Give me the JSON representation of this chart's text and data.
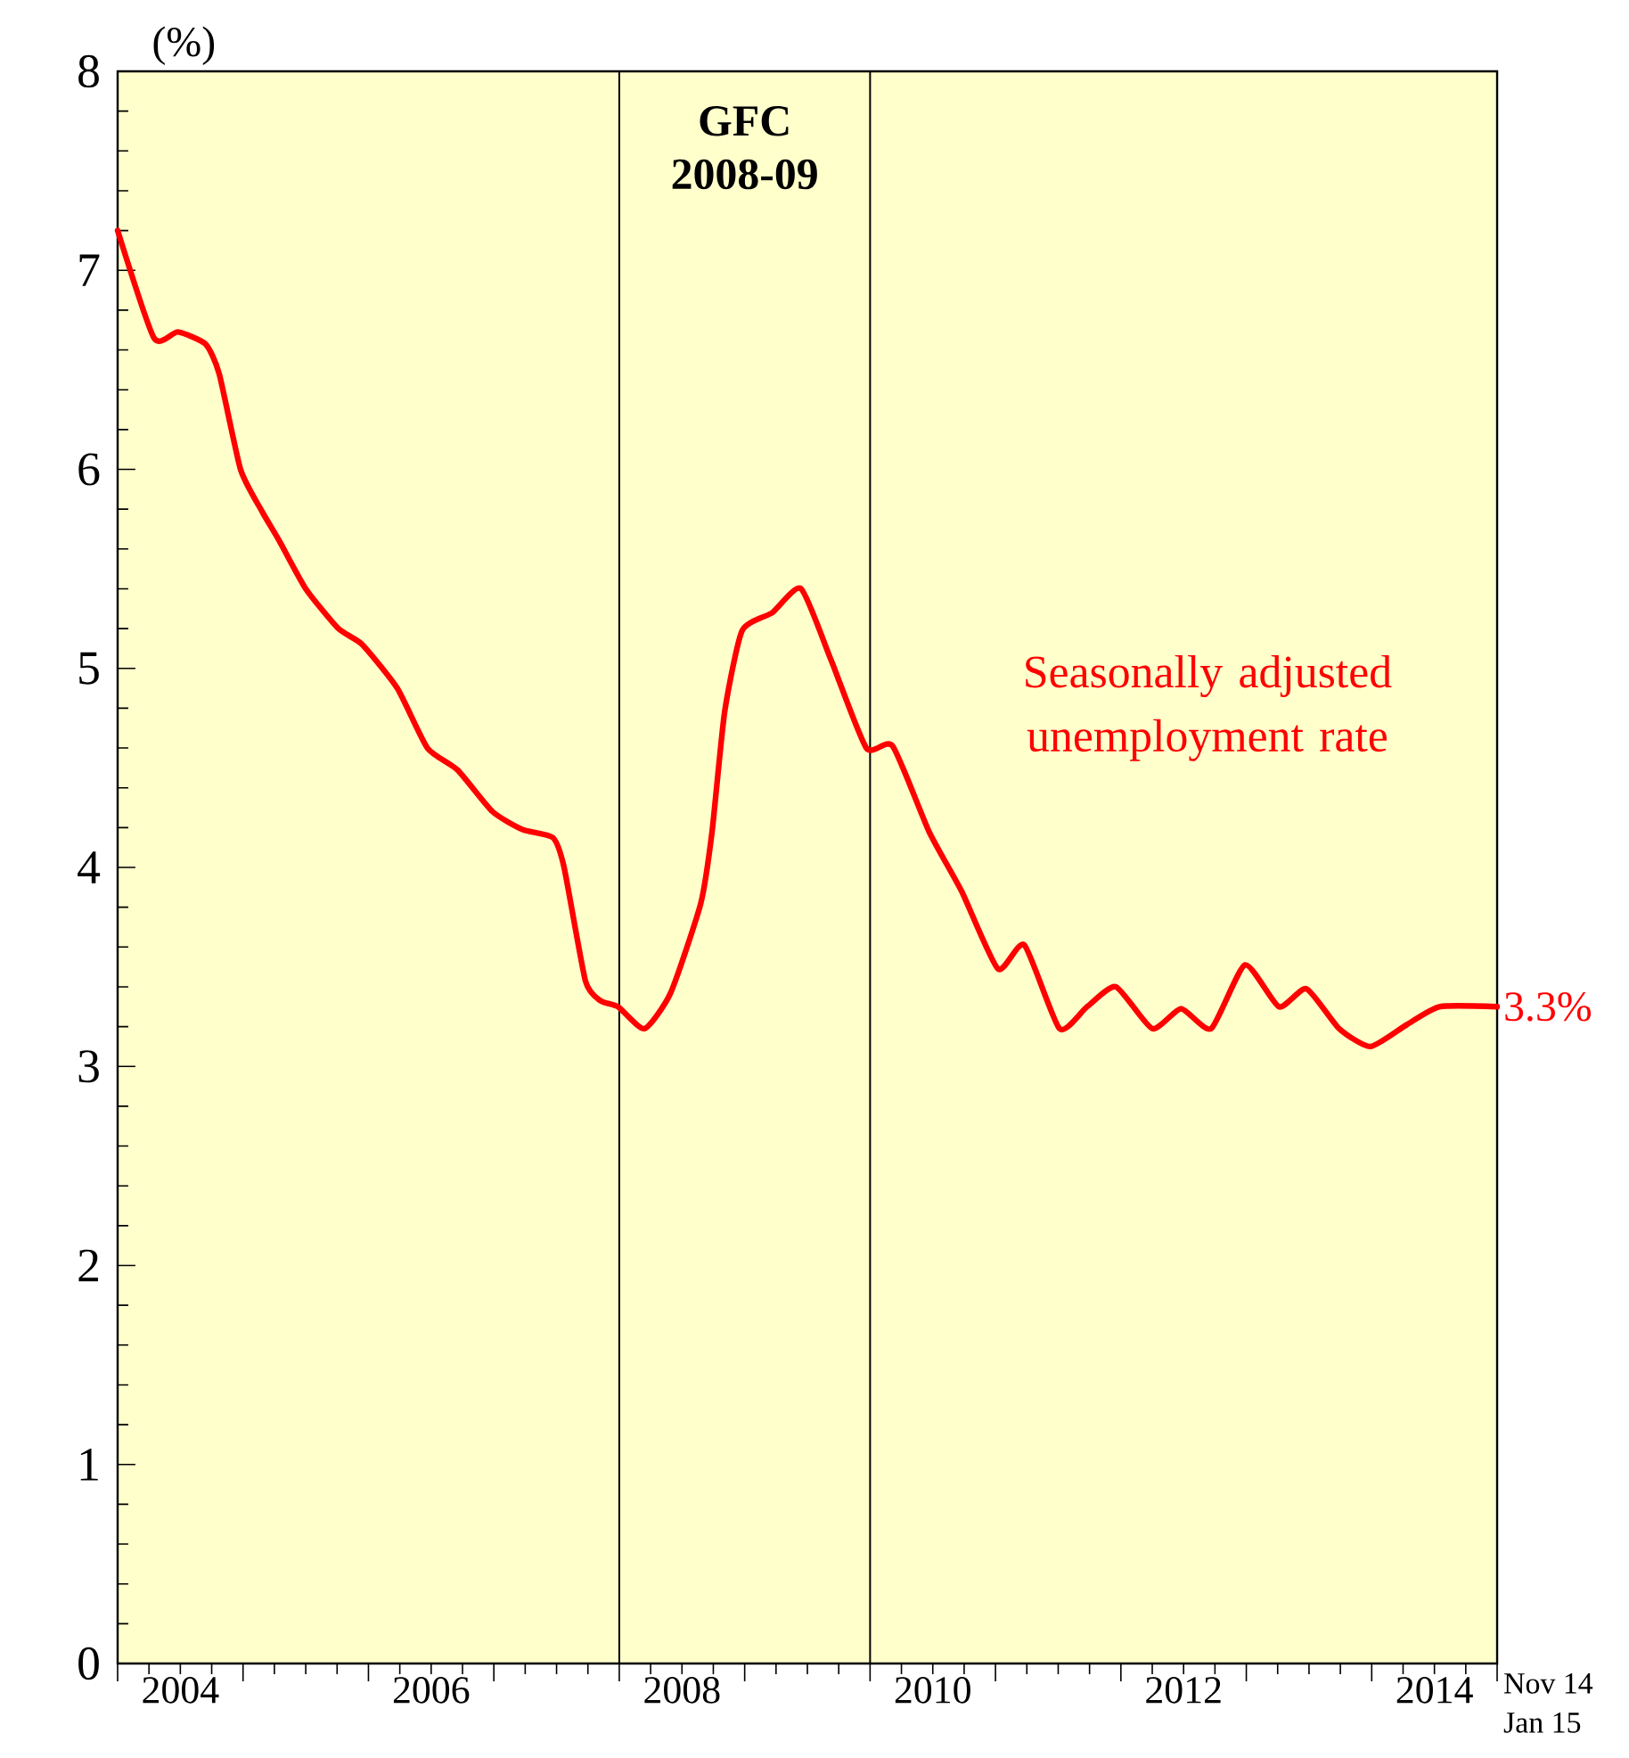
{
  "chart_data": {
    "type": "line",
    "ylabel": "(%)",
    "x": [
      2004.0,
      2004.29,
      2004.48,
      2004.7,
      2004.81,
      2004.98,
      2005.15,
      2005.29,
      2005.5,
      2005.76,
      2005.95,
      2006.23,
      2006.47,
      2006.71,
      2006.99,
      2007.23,
      2007.47,
      2007.56,
      2007.73,
      2007.85,
      2007.99,
      2008.2,
      2008.41,
      2008.65,
      2008.74,
      2008.84,
      2008.98,
      2009.22,
      2009.45,
      2009.69,
      2009.97,
      2010.18,
      2010.47,
      2010.73,
      2011.02,
      2011.23,
      2011.51,
      2011.73,
      2011.96,
      2012.25,
      2012.48,
      2012.72,
      2012.99,
      2013.26,
      2013.48,
      2013.74,
      2013.99,
      2014.28,
      2014.54,
      2015.0
    ],
    "series": [
      {
        "name": "Seasonally adjusted unemployment rate",
        "color": "#ff0000",
        "values": [
          7.2,
          6.66,
          6.69,
          6.63,
          6.48,
          6.0,
          5.79,
          5.64,
          5.4,
          5.2,
          5.12,
          4.9,
          4.6,
          4.49,
          4.28,
          4.19,
          4.15,
          4.0,
          3.43,
          3.33,
          3.3,
          3.19,
          3.37,
          3.82,
          4.18,
          4.78,
          5.19,
          5.28,
          5.4,
          5.04,
          4.6,
          4.61,
          4.18,
          3.88,
          3.49,
          3.61,
          3.19,
          3.3,
          3.4,
          3.19,
          3.29,
          3.19,
          3.51,
          3.3,
          3.39,
          3.19,
          3.1,
          3.21,
          3.3,
          3.3
        ]
      }
    ],
    "xlim": [
      2004,
      2015
    ],
    "ylim": [
      0,
      8
    ],
    "xticks": [
      {
        "value": 2004,
        "label": null
      },
      {
        "value": 2004.5,
        "label": "2004"
      },
      {
        "value": 2005,
        "label": null
      },
      {
        "value": 2006,
        "label": null
      },
      {
        "value": 2006.5,
        "label": "2006"
      },
      {
        "value": 2007,
        "label": null
      },
      {
        "value": 2008,
        "label": null
      },
      {
        "value": 2008.5,
        "label": "2008"
      },
      {
        "value": 2009,
        "label": null
      },
      {
        "value": 2010,
        "label": null
      },
      {
        "value": 2010.5,
        "label": "2010"
      },
      {
        "value": 2011,
        "label": null
      },
      {
        "value": 2012,
        "label": null
      },
      {
        "value": 2012.5,
        "label": "2012"
      },
      {
        "value": 2013,
        "label": null
      },
      {
        "value": 2014,
        "label": null
      },
      {
        "value": 2014.5,
        "label": "2014"
      },
      {
        "value": 2015,
        "label": null
      }
    ],
    "yticks": [
      0,
      1,
      2,
      3,
      4,
      5,
      6,
      7,
      8
    ],
    "ref_lines": [
      {
        "axis": "x",
        "value": 2008
      },
      {
        "axis": "x",
        "value": 2010
      }
    ],
    "annotations": [
      "GFC 2008-09",
      "Nov 14",
      "Jan 15",
      {
        "text": "3.3%",
        "x": 2015,
        "y": 3.3
      }
    ]
  }
}
